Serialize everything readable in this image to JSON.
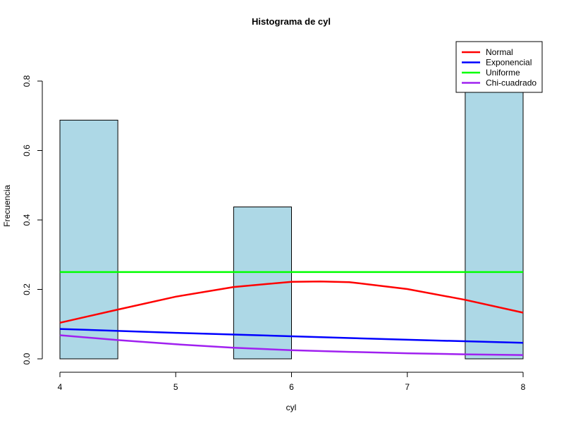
{
  "chart_data": {
    "type": "bar",
    "title": "Histograma de cyl",
    "xlabel": "cyl",
    "ylabel": "Frecuencia",
    "xlim": [
      4,
      8
    ],
    "ylim": [
      0,
      0.8
    ],
    "x_ticks": [
      "4",
      "5",
      "6",
      "7",
      "8"
    ],
    "y_ticks": [
      "0.0",
      "0.2",
      "0.4",
      "0.6",
      "0.8"
    ],
    "bars": [
      {
        "x0": 4.0,
        "x1": 4.5,
        "value": 0.6875
      },
      {
        "x0": 4.5,
        "x1": 5.0,
        "value": 0
      },
      {
        "x0": 5.0,
        "x1": 5.5,
        "value": 0
      },
      {
        "x0": 5.5,
        "x1": 6.0,
        "value": 0.4375
      },
      {
        "x0": 6.0,
        "x1": 6.5,
        "value": 0
      },
      {
        "x0": 6.5,
        "x1": 7.0,
        "value": 0
      },
      {
        "x0": 7.0,
        "x1": 7.5,
        "value": 0
      },
      {
        "x0": 7.5,
        "x1": 8.0,
        "value": 0.875
      }
    ],
    "bar_color": "#add8e6",
    "series": [
      {
        "name": "Normal",
        "color": "#ff0000",
        "x": [
          4,
          4.5,
          5,
          5.5,
          6,
          6.25,
          6.5,
          7,
          7.5,
          8
        ],
        "y": [
          0.104,
          0.142,
          0.179,
          0.207,
          0.222,
          0.223,
          0.221,
          0.201,
          0.17,
          0.133
        ]
      },
      {
        "name": "Exponencial",
        "color": "#0000ff",
        "x": [
          4,
          5,
          6,
          7,
          8
        ],
        "y": [
          0.086,
          0.075,
          0.065,
          0.055,
          0.046
        ]
      },
      {
        "name": "Uniforme",
        "color": "#00ff00",
        "x": [
          4,
          8
        ],
        "y": [
          0.25,
          0.25
        ]
      },
      {
        "name": "Chi-cuadrado",
        "color": "#a020f0",
        "x": [
          4,
          4.5,
          5,
          5.5,
          6,
          6.5,
          7,
          7.5,
          8
        ],
        "y": [
          0.068,
          0.054,
          0.042,
          0.032,
          0.025,
          0.02,
          0.016,
          0.013,
          0.011
        ]
      }
    ],
    "legend_position": "top-right",
    "grid": false
  }
}
